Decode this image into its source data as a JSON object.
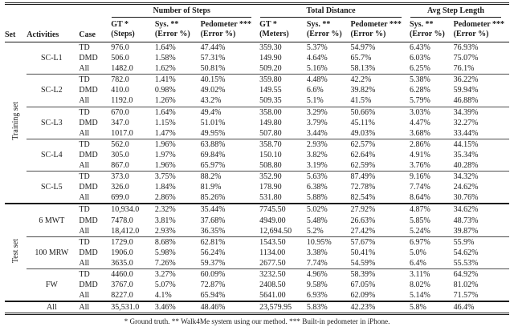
{
  "table": {
    "header": {
      "set": "Set",
      "activities": "Activities",
      "case": "Case",
      "groups": [
        {
          "label": "Number of Steps",
          "cols": [
            [
              "GT *",
              "(Steps)"
            ],
            [
              "Sys. **",
              "(Error %)"
            ],
            [
              "Pedometer ***",
              "(Error %)"
            ]
          ]
        },
        {
          "label": "Total Distance",
          "cols": [
            [
              "GT *",
              "(Meters)"
            ],
            [
              "Sys. **",
              "(Error %)"
            ],
            [
              "Pedometer ***",
              "(Error %)"
            ]
          ]
        },
        {
          "label": "Avg Step Length",
          "cols": [
            [
              "Sys. **",
              "(Error %)"
            ],
            [
              "Pedometer ***",
              "(Error %)"
            ]
          ]
        }
      ]
    },
    "sets": [
      {
        "name": "Training set",
        "activities": [
          {
            "name": "SC-L1",
            "rows": [
              {
                "case": "TD",
                "values": [
                  "976.0",
                  "1.64%",
                  "47.44%",
                  "359.30",
                  "5.37%",
                  "54.97%",
                  "6.43%",
                  "76.93%"
                ]
              },
              {
                "case": "DMD",
                "values": [
                  "506.0",
                  "1.58%",
                  "57.31%",
                  "149.90",
                  "4.64%",
                  "65.7%",
                  "6.03%",
                  "75.07%"
                ]
              },
              {
                "case": "All",
                "values": [
                  "1482.0",
                  "1.62%",
                  "50.81%",
                  "509.20",
                  "5.16%",
                  "58.13%",
                  "6.25%",
                  "76.1%"
                ]
              }
            ]
          },
          {
            "name": "SC-L2",
            "rows": [
              {
                "case": "TD",
                "values": [
                  "782.0",
                  "1.41%",
                  "40.15%",
                  "359.80",
                  "4.48%",
                  "42.2%",
                  "5.38%",
                  "36.22%"
                ]
              },
              {
                "case": "DMD",
                "values": [
                  "410.0",
                  "0.98%",
                  "49.02%",
                  "149.55",
                  "6.6%",
                  "39.82%",
                  "6.28%",
                  "59.94%"
                ]
              },
              {
                "case": "All",
                "values": [
                  "1192.0",
                  "1.26%",
                  "43.2%",
                  "509.35",
                  "5.1%",
                  "41.5%",
                  "5.79%",
                  "46.88%"
                ]
              }
            ]
          },
          {
            "name": "SC-L3",
            "rows": [
              {
                "case": "TD",
                "values": [
                  "670.0",
                  "1.64%",
                  "49.4%",
                  "358.00",
                  "3.29%",
                  "50.66%",
                  "3.03%",
                  "34.39%"
                ]
              },
              {
                "case": "DMD",
                "values": [
                  "347.0",
                  "1.15%",
                  "51.01%",
                  "149.80",
                  "3.79%",
                  "45.11%",
                  "4.47%",
                  "32.27%"
                ]
              },
              {
                "case": "All",
                "values": [
                  "1017.0",
                  "1.47%",
                  "49.95%",
                  "507.80",
                  "3.44%",
                  "49.03%",
                  "3.68%",
                  "33.44%"
                ]
              }
            ]
          },
          {
            "name": "SC-L4",
            "rows": [
              {
                "case": "TD",
                "values": [
                  "562.0",
                  "1.96%",
                  "63.88%",
                  "358.70",
                  "2.93%",
                  "62.57%",
                  "2.86%",
                  "44.15%"
                ]
              },
              {
                "case": "DMD",
                "values": [
                  "305.0",
                  "1.97%",
                  "69.84%",
                  "150.10",
                  "3.82%",
                  "62.64%",
                  "4.91%",
                  "35.34%"
                ]
              },
              {
                "case": "All",
                "values": [
                  "867.0",
                  "1.96%",
                  "65.97%",
                  "508.80",
                  "3.19%",
                  "62.59%",
                  "3.76%",
                  "40.28%"
                ]
              }
            ]
          },
          {
            "name": "SC-L5",
            "rows": [
              {
                "case": "TD",
                "values": [
                  "373.0",
                  "3.75%",
                  "88.2%",
                  "352.90",
                  "5.63%",
                  "87.49%",
                  "9.16%",
                  "34.32%"
                ]
              },
              {
                "case": "DMD",
                "values": [
                  "326.0",
                  "1.84%",
                  "81.9%",
                  "178.90",
                  "6.38%",
                  "72.78%",
                  "7.74%",
                  "24.62%"
                ]
              },
              {
                "case": "All",
                "values": [
                  "699.0",
                  "2.86%",
                  "85.26%",
                  "531.80",
                  "5.88%",
                  "82.54%",
                  "8.64%",
                  "30.76%"
                ]
              }
            ]
          }
        ]
      },
      {
        "name": "Test set",
        "activities": [
          {
            "name": "6 MWT",
            "rows": [
              {
                "case": "TD",
                "values": [
                  "10,934.0",
                  "2.32%",
                  "35.44%",
                  "7745.50",
                  "5.02%",
                  "27.92%",
                  "4.87%",
                  "34.62%"
                ]
              },
              {
                "case": "DMD",
                "values": [
                  "7478.0",
                  "3.81%",
                  "37.68%",
                  "4949.00",
                  "5.48%",
                  "26.63%",
                  "5.85%",
                  "48.73%"
                ]
              },
              {
                "case": "All",
                "values": [
                  "18,412.0",
                  "2.93%",
                  "36.35%",
                  "12,694.50",
                  "5.2%",
                  "27.42%",
                  "5.24%",
                  "39.87%"
                ]
              }
            ]
          },
          {
            "name": "100 MRW",
            "rows": [
              {
                "case": "TD",
                "values": [
                  "1729.0",
                  "8.68%",
                  "62.81%",
                  "1543.50",
                  "10.95%",
                  "57.67%",
                  "6.97%",
                  "55.9%"
                ]
              },
              {
                "case": "DMD",
                "values": [
                  "1906.0",
                  "5.98%",
                  "56.24%",
                  "1134.00",
                  "3.38%",
                  "50.41%",
                  "5.0%",
                  "54.62%"
                ]
              },
              {
                "case": "All",
                "values": [
                  "3635.0",
                  "7.26%",
                  "59.37%",
                  "2677.50",
                  "7.74%",
                  "54.59%",
                  "6.4%",
                  "55.53%"
                ]
              }
            ]
          },
          {
            "name": "FW",
            "rows": [
              {
                "case": "TD",
                "values": [
                  "4460.0",
                  "3.27%",
                  "60.09%",
                  "3232.50",
                  "4.96%",
                  "58.39%",
                  "3.11%",
                  "64.92%"
                ]
              },
              {
                "case": "DMD",
                "values": [
                  "3767.0",
                  "5.07%",
                  "72.87%",
                  "2408.50",
                  "9.58%",
                  "67.05%",
                  "8.02%",
                  "81.02%"
                ]
              },
              {
                "case": "All",
                "values": [
                  "8227.0",
                  "4.1%",
                  "65.94%",
                  "5641.00",
                  "6.93%",
                  "62.09%",
                  "5.14%",
                  "71.57%"
                ]
              }
            ]
          }
        ]
      }
    ],
    "total_row": {
      "set": "",
      "activities": "All",
      "case": "All",
      "values": [
        "35,531.0",
        "3.46%",
        "48.46%",
        "23,579.95",
        "5.83%",
        "42.23%",
        "5.8%",
        "46.4%"
      ]
    },
    "footnote": "* Ground truth. ** Walk4Me system using our method. *** Built-in pedometer in iPhone."
  }
}
